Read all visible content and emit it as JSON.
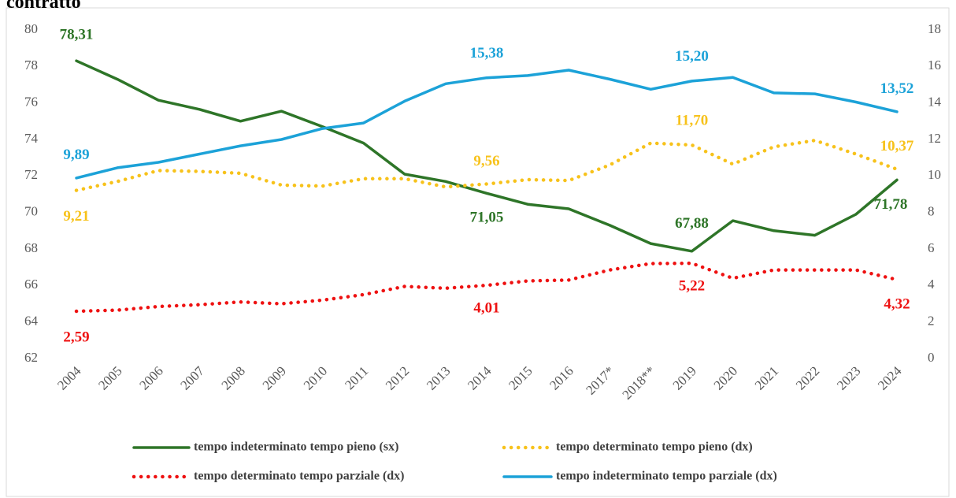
{
  "chart_data": {
    "type": "line",
    "title": "contratto",
    "categories": [
      "2004",
      "2005",
      "2006",
      "2007",
      "2008",
      "2009",
      "2010",
      "2011",
      "2012",
      "2013",
      "2014",
      "2015",
      "2016",
      "2017*",
      "2018**",
      "2019",
      "2020",
      "2021",
      "2022",
      "2023",
      "2024"
    ],
    "ylim": [
      62,
      80
    ],
    "yticks": [
      62,
      64,
      66,
      68,
      70,
      72,
      74,
      76,
      78,
      80
    ],
    "y2lim": [
      0,
      18
    ],
    "y2ticks": [
      0,
      2,
      4,
      6,
      8,
      10,
      12,
      14,
      16,
      18
    ],
    "grid": false,
    "legend": "bottom",
    "series": [
      {
        "name": "tempo indeterminato tempo pieno (sx)",
        "color": "#2e7528",
        "line_style": "solid",
        "axis": "y",
        "values": [
          78.31,
          77.3,
          76.15,
          75.65,
          75.0,
          75.55,
          74.7,
          73.8,
          72.1,
          71.7,
          71.05,
          70.45,
          70.2,
          69.3,
          68.3,
          67.88,
          69.55,
          69.0,
          68.75,
          69.9,
          71.78
        ],
        "value_labels": [
          "78,31",
          null,
          null,
          null,
          null,
          null,
          null,
          null,
          null,
          null,
          "71,05",
          null,
          null,
          null,
          null,
          "67,88",
          null,
          null,
          null,
          null,
          "71,78"
        ]
      },
      {
        "name": "tempo determinato tempo pieno (dx)",
        "color": "#f7c21b",
        "line_style": "dotted",
        "axis": "y2",
        "values": [
          9.21,
          9.7,
          10.3,
          10.25,
          10.15,
          9.5,
          9.45,
          9.85,
          9.85,
          9.4,
          9.56,
          9.8,
          9.75,
          10.6,
          11.8,
          11.7,
          10.65,
          11.6,
          11.95,
          11.2,
          10.37
        ],
        "value_labels": [
          "9,21",
          null,
          null,
          null,
          null,
          null,
          null,
          null,
          null,
          null,
          "9,56",
          null,
          null,
          null,
          null,
          "11,70",
          null,
          null,
          null,
          null,
          "10,37"
        ]
      },
      {
        "name": "tempo determinato tempo parziale (dx)",
        "color": "#ee1111",
        "line_style": "dotted",
        "axis": "y2",
        "values": [
          2.59,
          2.65,
          2.85,
          2.95,
          3.1,
          3.0,
          3.2,
          3.5,
          3.95,
          3.85,
          4.01,
          4.25,
          4.3,
          4.85,
          5.2,
          5.22,
          4.4,
          4.85,
          4.85,
          4.85,
          4.32
        ],
        "value_labels": [
          "2,59",
          null,
          null,
          null,
          null,
          null,
          null,
          null,
          null,
          null,
          "4,01",
          null,
          null,
          null,
          null,
          "5,22",
          null,
          null,
          null,
          null,
          "4,32"
        ]
      },
      {
        "name": "tempo indeterminato tempo parziale (dx)",
        "color": "#1ca2d8",
        "line_style": "solid",
        "axis": "y2",
        "values": [
          9.89,
          10.45,
          10.75,
          11.2,
          11.65,
          12.0,
          12.6,
          12.9,
          14.1,
          15.05,
          15.38,
          15.5,
          15.8,
          15.3,
          14.75,
          15.2,
          15.4,
          14.55,
          14.5,
          14.05,
          13.52
        ],
        "value_labels": [
          "9,89",
          null,
          null,
          null,
          null,
          null,
          null,
          null,
          null,
          null,
          "15,38",
          null,
          null,
          null,
          null,
          "15,20",
          null,
          null,
          null,
          null,
          "13,52"
        ]
      }
    ]
  }
}
